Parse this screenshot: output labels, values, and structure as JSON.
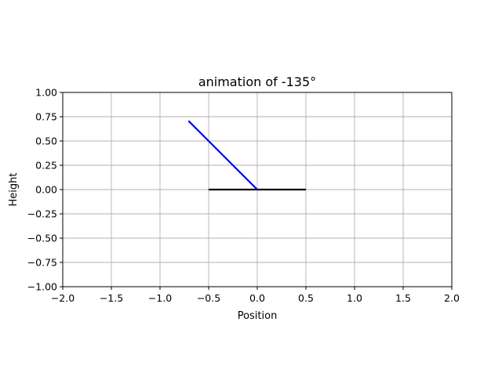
{
  "chart_data": {
    "type": "line",
    "title": "animation of -135°",
    "xlabel": "Position",
    "ylabel": "Height",
    "xlim": [
      -2.0,
      2.0
    ],
    "ylim": [
      -1.0,
      1.0
    ],
    "grid": true,
    "xticks": [
      -2.0,
      -1.5,
      -1.0,
      -0.5,
      0.0,
      0.5,
      1.0,
      1.5,
      2.0
    ],
    "xtick_labels": [
      "−2.0",
      "−1.5",
      "−1.0",
      "−0.5",
      "0.0",
      "0.5",
      "1.0",
      "1.5",
      "2.0"
    ],
    "yticks": [
      1.0,
      0.75,
      0.5,
      0.25,
      0.0,
      -0.25,
      -0.5,
      -0.75,
      -1.0
    ],
    "ytick_labels": [
      "1.00",
      "0.75",
      "0.50",
      "0.25",
      "0.00",
      "−0.25",
      "−0.50",
      "−0.75",
      "−1.00"
    ],
    "series": [
      {
        "x": [
          -0.5,
          0.5
        ],
        "y": [
          0.0,
          0.0
        ],
        "color": "#000000"
      },
      {
        "x": [
          0.0,
          -0.7071
        ],
        "y": [
          0.0,
          0.7071
        ],
        "color": "#0000ff"
      }
    ]
  }
}
